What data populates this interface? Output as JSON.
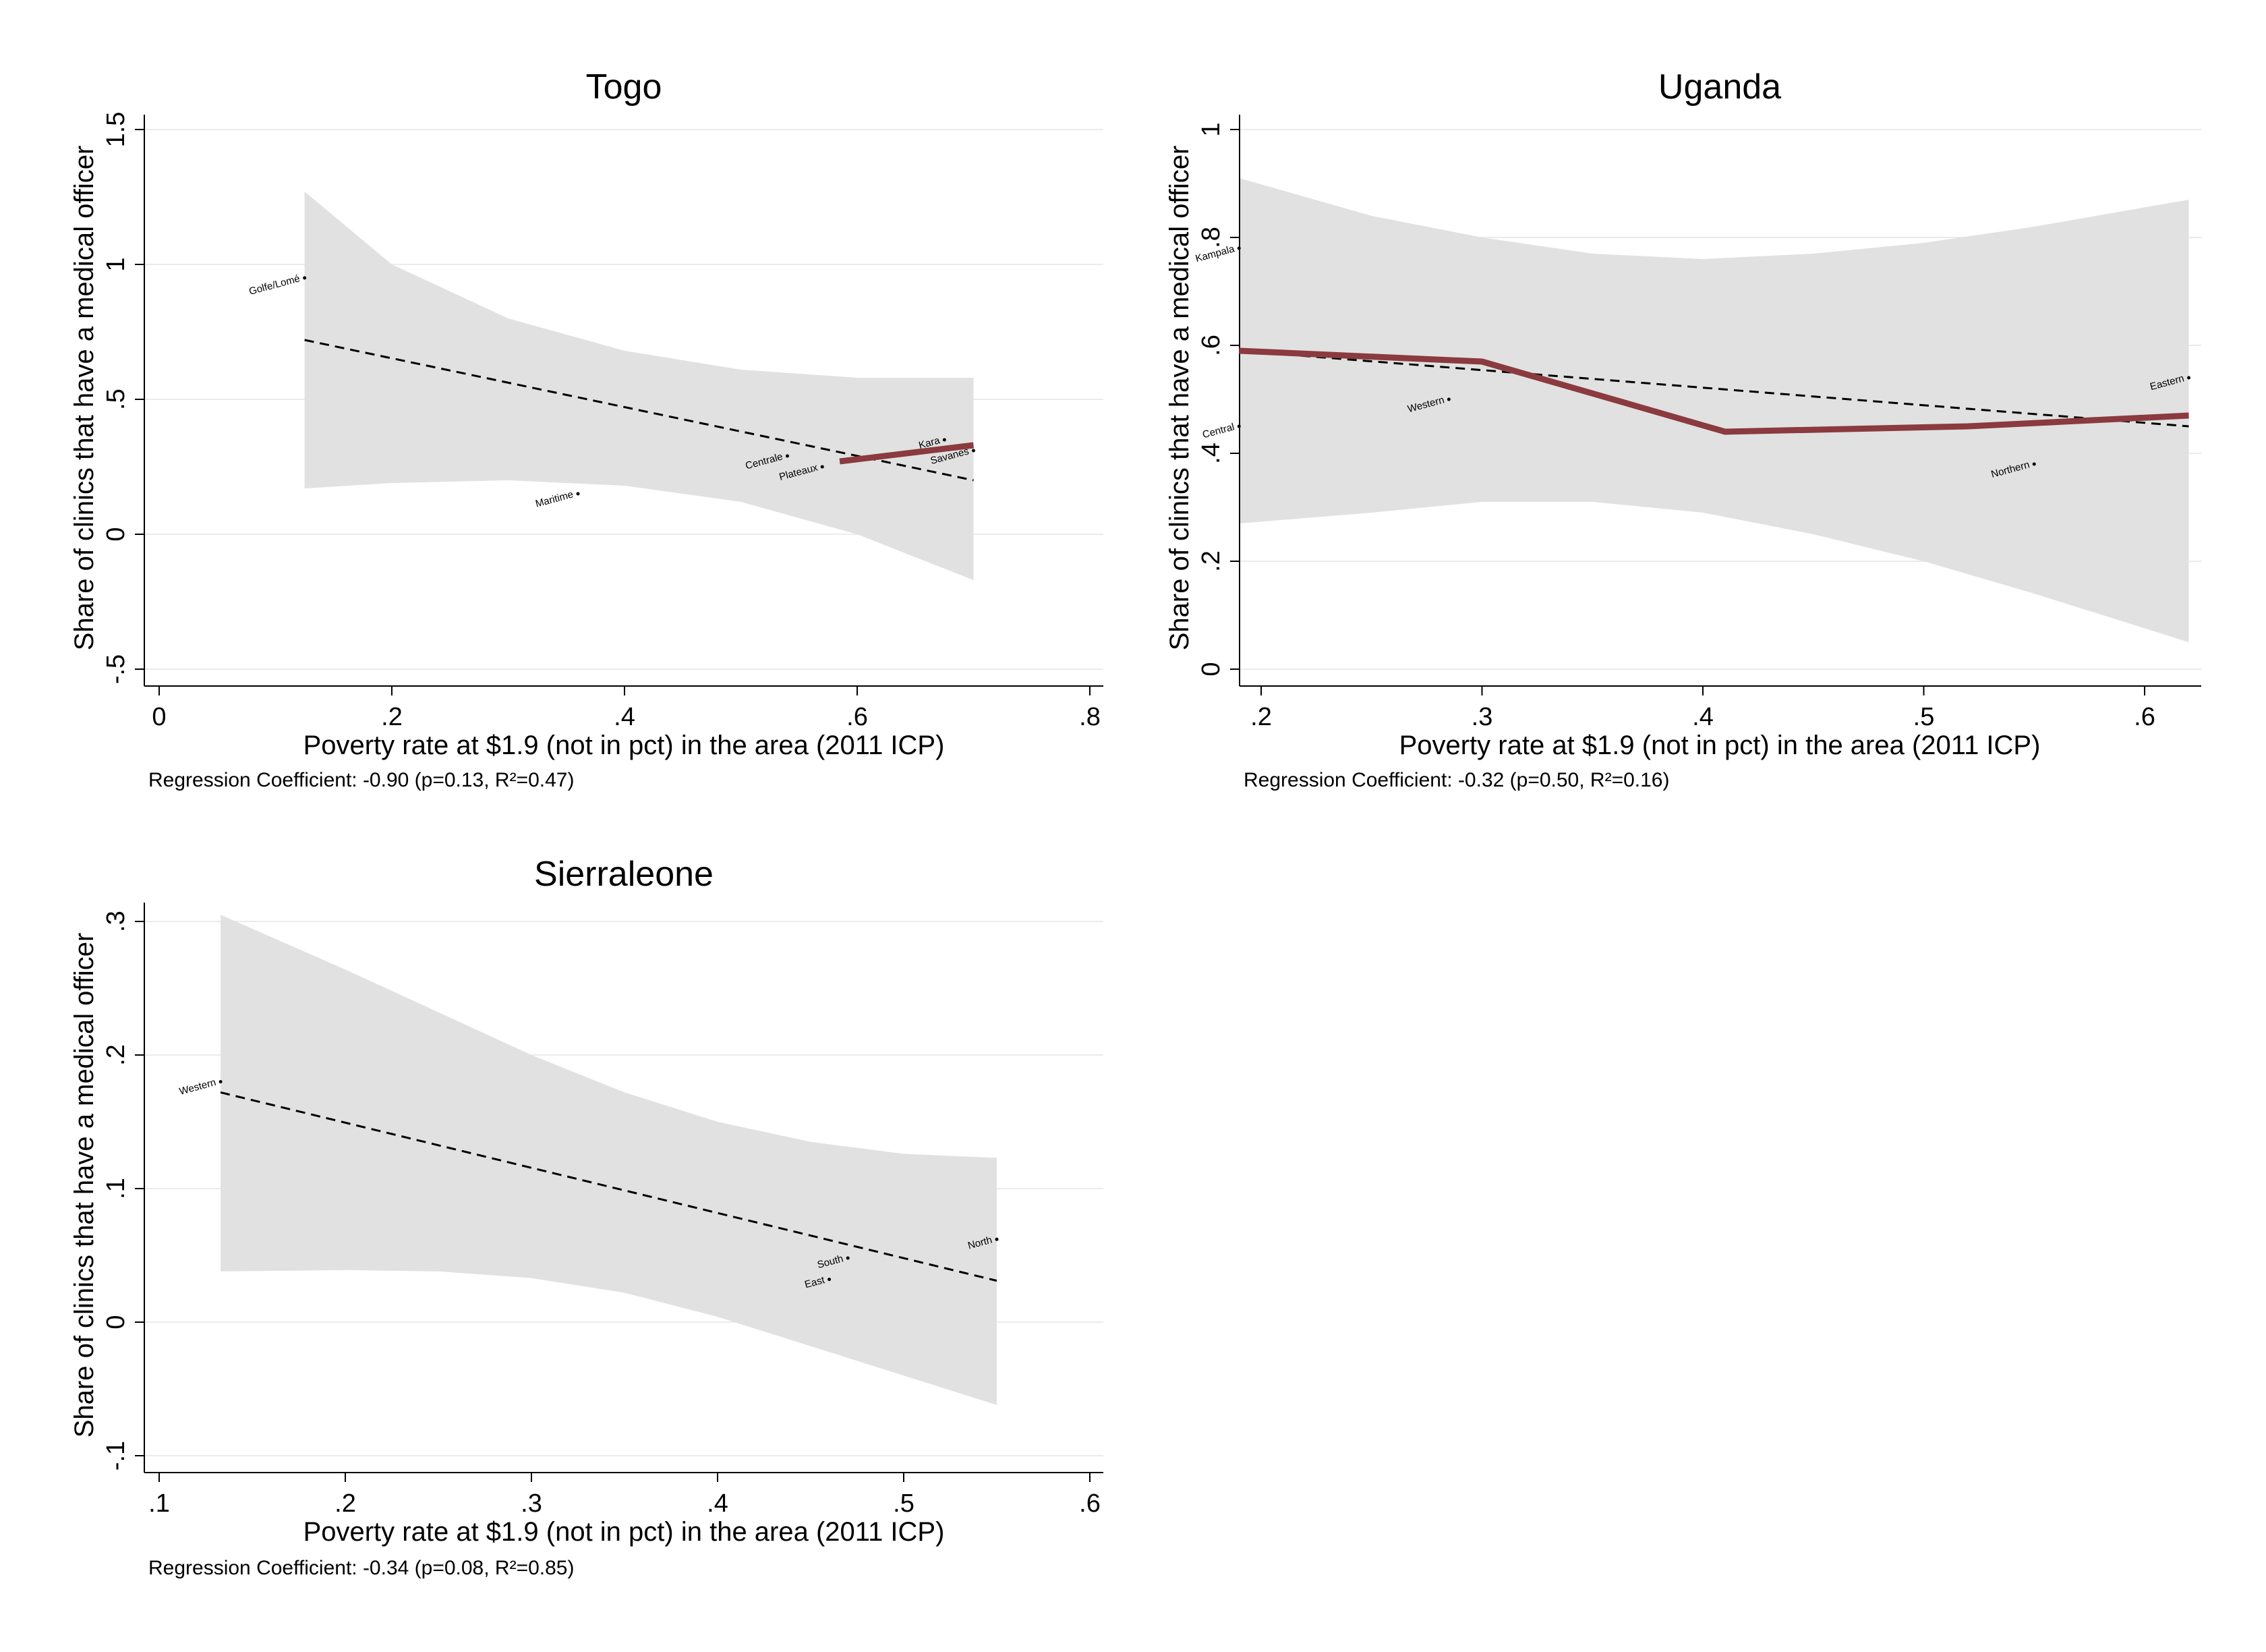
{
  "charts": [
    {
      "type": "scatter",
      "title": "Togo",
      "xlabel": "Poverty rate at $1.9 (not in pct) in the area (2011 ICP)",
      "ylabel": "Share of clinics that have a medical officer",
      "note": "Regression Coefficient: -0.90 (p=0.13, R²=0.47)",
      "xlim": [
        0,
        0.8
      ],
      "ylim": [
        -0.5,
        1.5
      ],
      "xticks": [
        0,
        0.2,
        0.4,
        0.6,
        0.8
      ],
      "xtick_labels": [
        "0",
        ".2",
        ".4",
        ".6",
        ".8"
      ],
      "yticks": [
        -0.5,
        0,
        0.5,
        1,
        1.5
      ],
      "ytick_labels": [
        "-.5",
        "0",
        ".5",
        "1",
        "1.5"
      ],
      "grid": true,
      "points": [
        {
          "label": "Golfe/Lomé",
          "x": 0.125,
          "y": 0.95
        },
        {
          "label": "Maritime",
          "x": 0.36,
          "y": 0.15
        },
        {
          "label": "Centrale",
          "x": 0.54,
          "y": 0.29
        },
        {
          "label": "Plateaux",
          "x": 0.57,
          "y": 0.25
        },
        {
          "label": "Kara",
          "x": 0.675,
          "y": 0.35
        },
        {
          "label": "Savanes",
          "x": 0.7,
          "y": 0.31
        }
      ],
      "fit_line": {
        "x": [
          0.125,
          0.7
        ],
        "y": [
          0.72,
          0.2
        ]
      },
      "ci_band": {
        "x": [
          0.125,
          0.2,
          0.3,
          0.4,
          0.5,
          0.6,
          0.7
        ],
        "upper": [
          1.27,
          1.0,
          0.8,
          0.68,
          0.61,
          0.58,
          0.58
        ],
        "lower": [
          0.17,
          0.19,
          0.2,
          0.18,
          0.12,
          0.0,
          -0.17
        ]
      },
      "lowess": {
        "x": [
          0.585,
          0.7
        ],
        "y": [
          0.27,
          0.33
        ]
      }
    },
    {
      "type": "scatter",
      "title": "Uganda",
      "xlabel": "Poverty rate at $1.9 (not in pct) in the area (2011 ICP)",
      "ylabel": "Share of clinics that have a medical officer",
      "note": "Regression Coefficient: -0.32 (p=0.50, R²=0.16)",
      "xlim": [
        0.19,
        0.63
      ],
      "ylim": [
        0,
        1
      ],
      "xticks": [
        0.2,
        0.3,
        0.4,
        0.5,
        0.6
      ],
      "xtick_labels": [
        ".2",
        ".3",
        ".4",
        ".5",
        ".6"
      ],
      "yticks": [
        0,
        0.2,
        0.4,
        0.6,
        0.8,
        1
      ],
      "ytick_labels": [
        "0",
        ".2",
        ".4",
        ".6",
        ".8",
        "1"
      ],
      "grid": true,
      "points": [
        {
          "label": "Kampala",
          "x": 0.19,
          "y": 0.78
        },
        {
          "label": "Central",
          "x": 0.19,
          "y": 0.45
        },
        {
          "label": "Western",
          "x": 0.285,
          "y": 0.5
        },
        {
          "label": "Northern",
          "x": 0.55,
          "y": 0.38
        },
        {
          "label": "Eastern",
          "x": 0.62,
          "y": 0.54
        }
      ],
      "fit_line": {
        "x": [
          0.19,
          0.62
        ],
        "y": [
          0.59,
          0.45
        ]
      },
      "ci_band": {
        "x": [
          0.19,
          0.25,
          0.3,
          0.35,
          0.4,
          0.45,
          0.5,
          0.55,
          0.62
        ],
        "upper": [
          0.91,
          0.84,
          0.8,
          0.77,
          0.76,
          0.77,
          0.79,
          0.82,
          0.87
        ],
        "lower": [
          0.27,
          0.29,
          0.31,
          0.31,
          0.29,
          0.25,
          0.2,
          0.14,
          0.05
        ]
      },
      "lowess": {
        "x": [
          0.19,
          0.3,
          0.41,
          0.52,
          0.62
        ],
        "y": [
          0.59,
          0.57,
          0.44,
          0.45,
          0.47
        ]
      }
    },
    {
      "type": "scatter",
      "title": "Sierraleone",
      "xlabel": "Poverty rate at $1.9 (not in pct) in the area (2011 ICP)",
      "ylabel": "Share of clinics that have a medical officer",
      "note": "Regression Coefficient: -0.34 (p=0.08, R²=0.85)",
      "xlim": [
        0.09,
        0.61
      ],
      "ylim": [
        -0.1,
        0.3
      ],
      "xticks": [
        0.1,
        0.2,
        0.3,
        0.4,
        0.5,
        0.6
      ],
      "xtick_labels": [
        ".1",
        ".2",
        ".3",
        ".4",
        ".5",
        ".6"
      ],
      "yticks": [
        -0.1,
        0,
        0.1,
        0.2,
        0.3
      ],
      "ytick_labels": [
        "-.1",
        "0",
        ".1",
        ".2",
        ".3"
      ],
      "grid": true,
      "points": [
        {
          "label": "Western",
          "x": 0.133,
          "y": 0.18
        },
        {
          "label": "South",
          "x": 0.47,
          "y": 0.048
        },
        {
          "label": "East",
          "x": 0.46,
          "y": 0.032
        },
        {
          "label": "North",
          "x": 0.55,
          "y": 0.062
        }
      ],
      "fit_line": {
        "x": [
          0.133,
          0.55
        ],
        "y": [
          0.172,
          0.031
        ]
      },
      "ci_band": {
        "x": [
          0.133,
          0.2,
          0.25,
          0.3,
          0.35,
          0.4,
          0.45,
          0.5,
          0.55
        ],
        "upper": [
          0.305,
          0.264,
          0.232,
          0.2,
          0.172,
          0.15,
          0.135,
          0.126,
          0.123
        ],
        "lower": [
          0.038,
          0.039,
          0.038,
          0.033,
          0.022,
          0.004,
          -0.018,
          -0.04,
          -0.062
        ]
      },
      "lowess": null
    }
  ],
  "colors": {
    "band": "#e1e1e1",
    "grid": "#ebebeb",
    "fit": "#000000",
    "lowess": "#8b3a3f",
    "axis": "#000000"
  }
}
